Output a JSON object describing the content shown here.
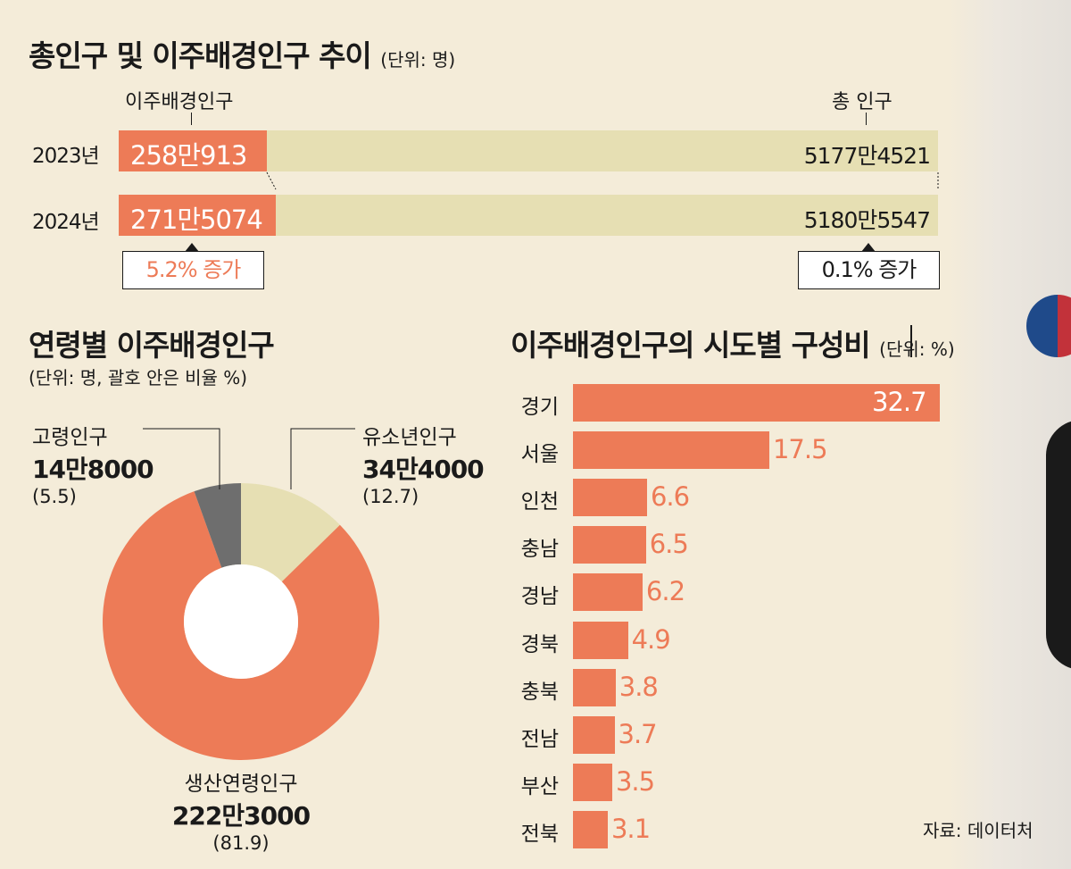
{
  "top": {
    "title": "총인구 및 이주배경인구 추이",
    "unit": "(단위: 명)",
    "label_migrant": "이주배경인구",
    "label_total": "총 인구",
    "rows": [
      {
        "year": "2023년",
        "migrant": "258만913",
        "total": "5177만4521"
      },
      {
        "year": "2024년",
        "migrant": "271만5074",
        "total": "5180만5547"
      }
    ],
    "migrant_increase": "5.2% 증가",
    "total_increase": "0.1% 증가"
  },
  "age": {
    "title": "연령별 이주배경인구",
    "unit": "(단위: 명, 괄호 안은 비율 %)",
    "segments": [
      {
        "name": "유소년인구",
        "value": "34만4000",
        "pct": "(12.7)",
        "share": 12.7
      },
      {
        "name": "생산연령인구",
        "value": "222만3000",
        "pct": "(81.9)",
        "share": 81.9
      },
      {
        "name": "고령인구",
        "value": "14만8000",
        "pct": "(5.5)",
        "share": 5.5
      }
    ]
  },
  "region": {
    "title": "이주배경인구의 시도별 구성비",
    "unit": "(단위: %)",
    "source": "자료: 데이터처"
  },
  "colors": {
    "accent": "#ed7b57",
    "light": "#e6dfb3",
    "gray": "#6e6e6e",
    "bg": "#f4ecd9"
  },
  "chart_data": [
    {
      "type": "bar",
      "title": "총인구 및 이주배경인구 추이",
      "categories": [
        "2023년",
        "2024년"
      ],
      "series": [
        {
          "name": "이주배경인구",
          "values": [
            2580913,
            2715074
          ]
        },
        {
          "name": "총 인구",
          "values": [
            51774521,
            51805547
          ]
        }
      ]
    },
    {
      "type": "pie",
      "title": "연령별 이주배경인구",
      "categories": [
        "유소년인구",
        "생산연령인구",
        "고령인구"
      ],
      "values": [
        344000,
        2223000,
        148000
      ],
      "percent": [
        12.7,
        81.9,
        5.5
      ]
    },
    {
      "type": "bar",
      "title": "이주배경인구의 시도별 구성비",
      "categories": [
        "경기",
        "서울",
        "인천",
        "충남",
        "경남",
        "경북",
        "충북",
        "전남",
        "부산",
        "전북"
      ],
      "values": [
        32.7,
        17.5,
        6.6,
        6.5,
        6.2,
        4.9,
        3.8,
        3.7,
        3.5,
        3.1
      ],
      "labels": [
        "32.7",
        "17.5",
        "6.6",
        "6.5",
        "6.2",
        "4.9",
        "3.8",
        "3.7",
        "3.5",
        "3.1"
      ],
      "xlim": [
        0,
        32.7
      ]
    }
  ]
}
